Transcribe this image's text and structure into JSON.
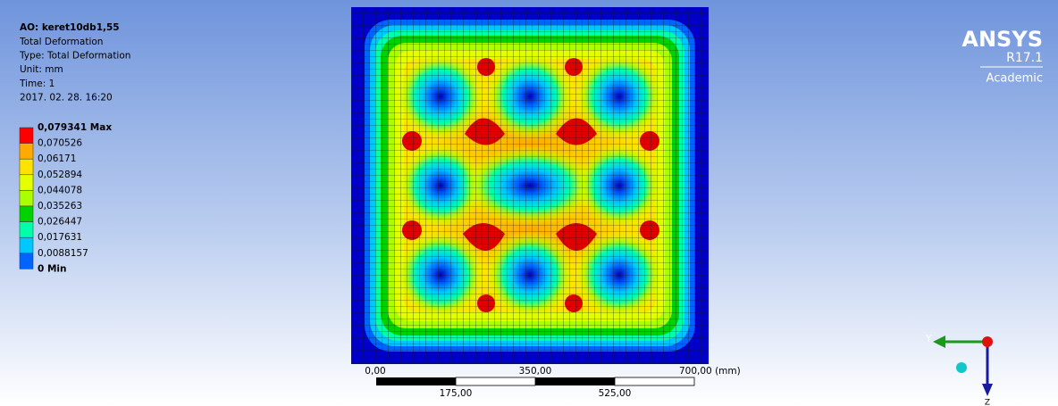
{
  "info": {
    "title": "AO: keret10db1,55",
    "lines": [
      "Total Deformation",
      "Type: Total Deformation",
      "Unit: mm",
      "Time: 1",
      "2017. 02. 28. 16:20"
    ]
  },
  "legend": {
    "labels": [
      "0,079341 Max",
      "0,070526",
      "0,06171",
      "0,052894",
      "0,044078",
      "0,035263",
      "0,026447",
      "0,017631",
      "0,0088157",
      "0 Min"
    ],
    "colors": [
      "#ff0000",
      "#ffaa00",
      "#ffe300",
      "#e3ff00",
      "#aaff00",
      "#00d200",
      "#00ffaa",
      "#00c8ff",
      "#0064ff"
    ]
  },
  "logo": {
    "name": "ANSYS",
    "version": "R17.1",
    "edition": "Academic"
  },
  "scale_bar": {
    "top_labels": [
      "0,00",
      "350,00",
      "700,00 (mm)"
    ],
    "bottom_labels": [
      "175,00",
      "525,00"
    ]
  },
  "triad": {
    "y_label": "Y",
    "z_label": "Z"
  }
}
